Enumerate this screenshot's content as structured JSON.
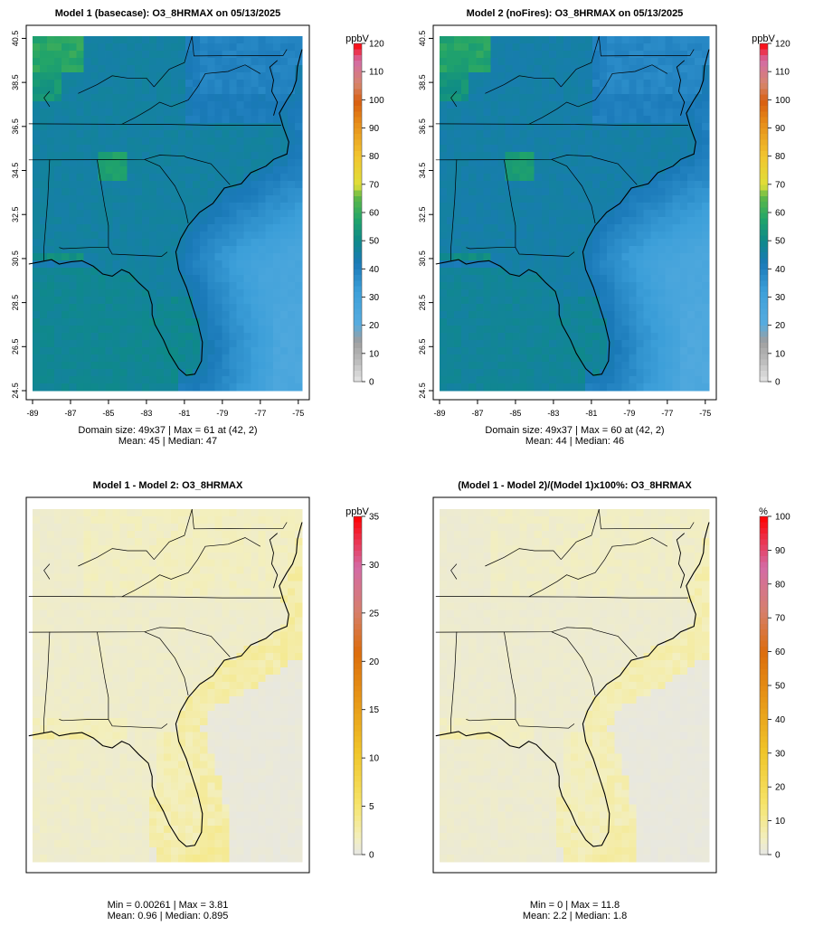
{
  "colors": {
    "land_outline": "#000000",
    "frame": "#000000"
  },
  "chart_data": [
    {
      "type": "heatmap",
      "title": "Model 1 (basecase): O3_8HRMAX on 05/13/2025",
      "xticks": [
        "-89",
        "-87",
        "-85",
        "-83",
        "-81",
        "-79",
        "-77",
        "-75"
      ],
      "yticks": [
        "24.5",
        "26.5",
        "28.5",
        "30.5",
        "32.5",
        "34.5",
        "36.5",
        "38.5",
        "40.5"
      ],
      "xlim": [
        -89.2,
        -74.8
      ],
      "ylim": [
        24.3,
        40.6
      ],
      "grid": [
        49,
        37
      ],
      "stats": [
        "Domain size: 49x37 | Max = 61 at (42, 2)",
        "Mean: 45 |  Median: 47"
      ],
      "colorbar": {
        "unit": "ppbV",
        "min": 0,
        "max": 120,
        "ticks": [
          "0",
          "10",
          "20",
          "30",
          "40",
          "50",
          "60",
          "70",
          "80",
          "90",
          "100",
          "110",
          "120"
        ]
      },
      "summary": {
        "max": 61,
        "mean": 45,
        "median": 47
      }
    },
    {
      "type": "heatmap",
      "title": "Model 2 (noFires): O3_8HRMAX on 05/13/2025",
      "xticks": [
        "-89",
        "-87",
        "-85",
        "-83",
        "-81",
        "-79",
        "-77",
        "-75"
      ],
      "yticks": [
        "24.5",
        "26.5",
        "28.5",
        "30.5",
        "32.5",
        "34.5",
        "36.5",
        "38.5",
        "40.5"
      ],
      "xlim": [
        -89.2,
        -74.8
      ],
      "ylim": [
        24.3,
        40.6
      ],
      "grid": [
        49,
        37
      ],
      "stats": [
        "Domain size: 49x37 | Max = 60 at (42, 2)",
        "Mean: 44 |  Median: 46"
      ],
      "colorbar": {
        "unit": "ppbV",
        "min": 0,
        "max": 120,
        "ticks": [
          "0",
          "10",
          "20",
          "30",
          "40",
          "50",
          "60",
          "70",
          "80",
          "90",
          "100",
          "110",
          "120"
        ]
      },
      "summary": {
        "max": 60,
        "mean": 44,
        "median": 46
      }
    },
    {
      "type": "heatmap",
      "title": "Model 1 - Model 2: O3_8HRMAX",
      "xlim": [
        -89.2,
        -74.8
      ],
      "ylim": [
        24.3,
        40.6
      ],
      "grid": [
        49,
        37
      ],
      "stats": [
        "Min = 0.00261 | Max = 3.81",
        "Mean: 0.96 |  Median: 0.895"
      ],
      "colorbar": {
        "unit": "ppbV",
        "min": 0,
        "max": 35,
        "ticks": [
          "0",
          "5",
          "10",
          "15",
          "20",
          "25",
          "30",
          "35"
        ]
      },
      "summary": {
        "min": 0.00261,
        "max": 3.81,
        "mean": 0.96,
        "median": 0.895
      }
    },
    {
      "type": "heatmap",
      "title": "(Model 1 - Model 2)/(Model 1)x100%: O3_8HRMAX",
      "xlim": [
        -89.2,
        -74.8
      ],
      "ylim": [
        24.3,
        40.6
      ],
      "grid": [
        49,
        37
      ],
      "stats": [
        "Min = 0 | Max = 11.8",
        "Mean: 2.2 |  Median: 1.8"
      ],
      "colorbar": {
        "unit": "%",
        "min": 0,
        "max": 100,
        "ticks": [
          "0",
          "10",
          "20",
          "30",
          "40",
          "50",
          "60",
          "70",
          "80",
          "90",
          "100"
        ]
      },
      "summary": {
        "min": 0,
        "max": 11.8,
        "mean": 2.2,
        "median": 1.8
      }
    }
  ]
}
